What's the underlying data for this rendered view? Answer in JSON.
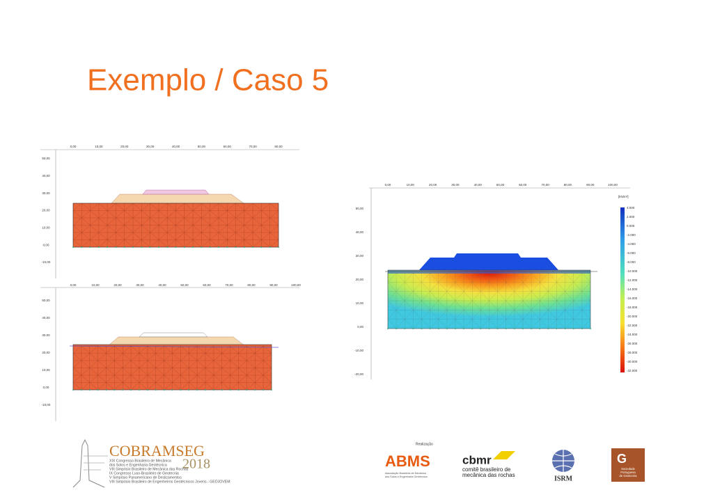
{
  "title": "Exemplo / Caso 5",
  "panel_top": {
    "x_labels": [
      "0,00",
      "10,00",
      "20,00",
      "30,00",
      "40,00",
      "50,00",
      "60,00",
      "70,00",
      "80,00"
    ],
    "y_labels": [
      "50,00",
      "40,00",
      "30,00",
      "20,00",
      "10,00",
      "0,00",
      "-10,00"
    ]
  },
  "panel_bottom": {
    "x_labels": [
      "0,00",
      "10,00",
      "20,00",
      "30,00",
      "40,00",
      "50,00",
      "60,00",
      "70,00",
      "80,00",
      "90,00",
      "100,00"
    ],
    "y_labels": [
      "50,00",
      "40,00",
      "30,00",
      "20,00",
      "10,00",
      "0,00",
      "-10,00"
    ]
  },
  "panel_right": {
    "x_labels": [
      "0,00",
      "10,00",
      "20,00",
      "30,00",
      "40,00",
      "50,00",
      "60,00",
      "70,00",
      "80,00",
      "90,00",
      "100,00"
    ],
    "y_labels": [
      "50,00",
      "40,00",
      "30,00",
      "20,00",
      "10,00",
      "0,00",
      "-10,00",
      "-20,00"
    ],
    "colorbar_unit": "[kN/m²]",
    "colorbar_labels": [
      "4.000",
      "2.000",
      "0.000",
      "-2.000",
      "-4.000",
      "-6.000",
      "-8.000",
      "-10.000",
      "-12.000",
      "-14.000",
      "-16.000",
      "-18.000",
      "-20.000",
      "-22.000",
      "-24.000",
      "-26.000",
      "-28.000",
      "-30.000",
      "-32.000"
    ]
  },
  "logos": {
    "cobramseg": "COBRAMSEG",
    "year": "2018",
    "cobramseg_lines": [
      "XIX Congresso Brasileiro de Mecânica",
      "dos Solos e Engenharia Geotécnica",
      "VIII Simpósio Brasileiro de Mecânica das Rochas",
      "IX Congresso Luso-Brasileiro de Geotecnia",
      "V Simpósio Panamericano de Deslizamentos",
      "VIII Simpósio Brasileiro de Engenheiros Geotécnicos Jovens - GEOJOVEM"
    ],
    "realizacao": "Realização",
    "abms": "ABMS",
    "abms_lines": [
      "Associação Brasileira de Mecânica",
      "dos Solos e Engenharia Geotécnica"
    ],
    "cbmr": "cbmr",
    "cbmr_lines": [
      "comitê brasileiro de",
      "mecânica das rochas"
    ],
    "isrm": "ISRM",
    "spg": "G",
    "spg_lines": [
      "Sociedade",
      "Portuguesa",
      "de Geotecnia"
    ]
  }
}
